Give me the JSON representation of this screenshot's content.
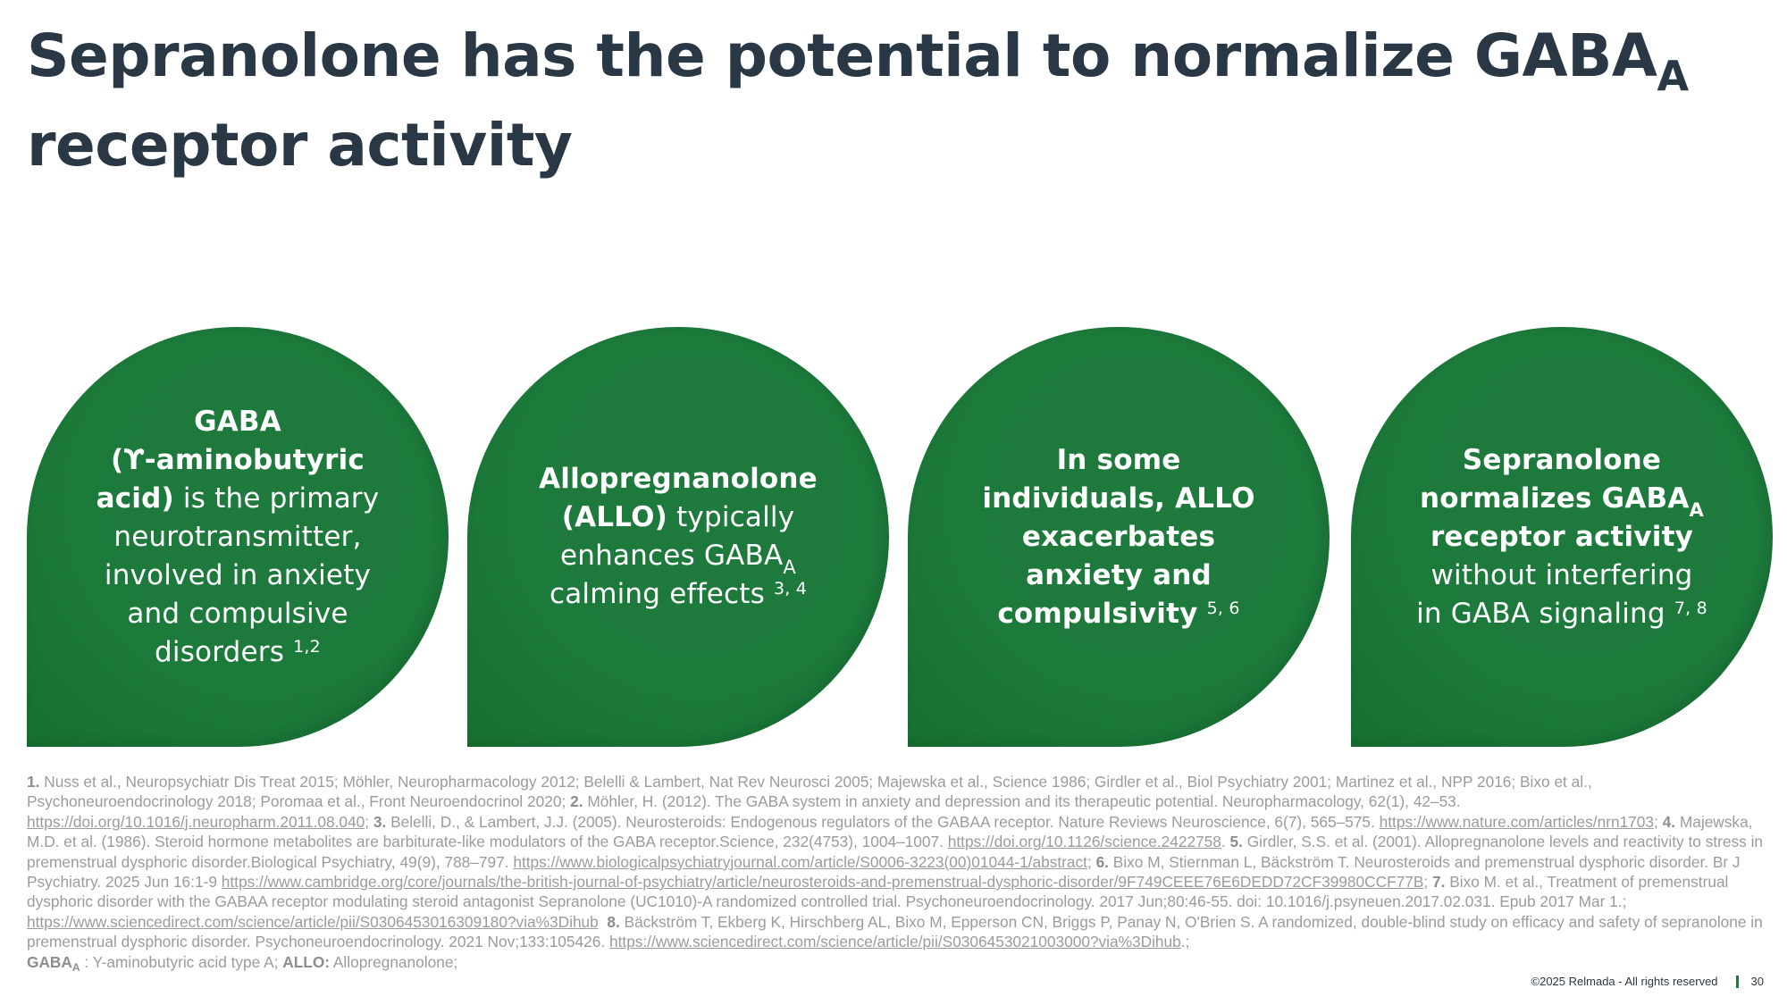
{
  "title": {
    "line1_main": "Sepranolone has the potential to normalize GABA",
    "line1_sub": "A",
    "line2": "receptor activity"
  },
  "cards": [
    {
      "bold1": "GABA",
      "bold2": "(ϒ-aminobutyric",
      "bold3": "acid)",
      "text": " is the primary neurotransmitter, involved in anxiety and compulsive disorders",
      "sup": "1,2"
    },
    {
      "bold1": "Allopregnanolone",
      "bold2": "(ALLO)",
      "text1": " typically enhances GABA",
      "sub": "A",
      "text2": " calming effects",
      "sup": "3, 4"
    },
    {
      "bold": "In some individuals, ALLO exacerbates anxiety and compulsivity",
      "sup": "5, 6"
    },
    {
      "bold1": "Sepranolone normalizes GABA",
      "sub": "A",
      "bold2": " receptor activity",
      "text": " without interfering in GABA signaling",
      "sup": "7, 8"
    }
  ],
  "references": {
    "n1": "1.",
    "r1": " Nuss et al., Neuropsychiatr Dis Treat 2015; Möhler, Neuropharmacology 2012; Belelli & Lambert, Nat Rev Neurosci 2005; Majewska et al., Science 1986; Girdler et al., Biol Psychiatry 2001; Martinez et al., NPP 2016; Bixo et al., Psychoneuroendocrinology 2018; Poromaa et al., Front Neuroendocrinol 2020; ",
    "n2": "2.",
    "r2": " Möhler, H. (2012). The GABA system in anxiety and depression and its therapeutic potential. Neuropharmacology, 62(1), 42–53. ",
    "u2": "https://doi.org/10.1016/j.neuropharm.2011.08.040",
    "n3": "3.",
    "r3": " Belelli, D., & Lambert, J.J. (2005). Neurosteroids: Endogenous regulators of the GABAA receptor. Nature Reviews Neuroscience, 6(7), 565–575. ",
    "u3": "https://www.nature.com/articles/nrn1703",
    "n4": "4.",
    "r4": " Majewska, M.D. et al. (1986). Steroid hormone metabolites are barbiturate-like modulators of the GABA receptor.Science, 232(4753), 1004–1007. ",
    "u4": "https://doi.org/10.1126/science.2422758",
    "n5": "5.",
    "r5": " Girdler, S.S. et al. (2001). Allopregnanolone levels and reactivity to stress in premenstrual dysphoric disorder.Biological Psychiatry, 49(9), 788–797. ",
    "u5": "https://www.biologicalpsychiatryjournal.com/article/S0006-3223(00)01044-1/abstract",
    "n6": "6.",
    "r6": " Bixo M, Stiernman L, Bäckström T. Neurosteroids and premenstrual dysphoric disorder. Br J Psychiatry. 2025 Jun 16:1-9 ",
    "u6": "https://www.cambridge.org/core/journals/the-british-journal-of-psychiatry/article/neurosteroids-and-premenstrual-dysphoric-disorder/9F749CEEE76E6DEDD72CF39980CCF77B",
    "n7": "7.",
    "r7": " Bixo M. et al., Treatment of premenstrual dysphoric disorder with the GABAA receptor modulating steroid antagonist Sepranolone (UC1010)-A randomized controlled trial. Psychoneuroendocrinology. 2017 Jun;80:46-55. doi: 10.1016/j.psyneuen.2017.02.031. Epub 2017 Mar 1.; ",
    "u7": "https://www.sciencedirect.com/science/article/pii/S0306453016309180?via%3Dihub",
    "n8": "8.",
    "r8": " Bäckström T, Ekberg K, Hirschberg AL, Bixo M, Epperson CN, Briggs P, Panay N, O'Brien S. A randomized, double-blind study on efficacy and safety of sepranolone in premenstrual dysphoric disorder. Psychoneuroendocrinology. 2021 Nov;133:105426. ",
    "u8": "https://www.sciencedirect.com/science/article/pii/S0306453021003000?via%3Dihub",
    "tail": ".;",
    "abbr1_main": "GABA",
    "abbr1_sub": "A",
    "abbr1_rest": " : Y-aminobutyric acid type A; ",
    "abbr2": "ALLO:",
    "abbr2_rest": " Allopregnanolone;"
  },
  "footer": {
    "copyright": "©2025 Relmada - All rights reserved",
    "page": "30"
  }
}
